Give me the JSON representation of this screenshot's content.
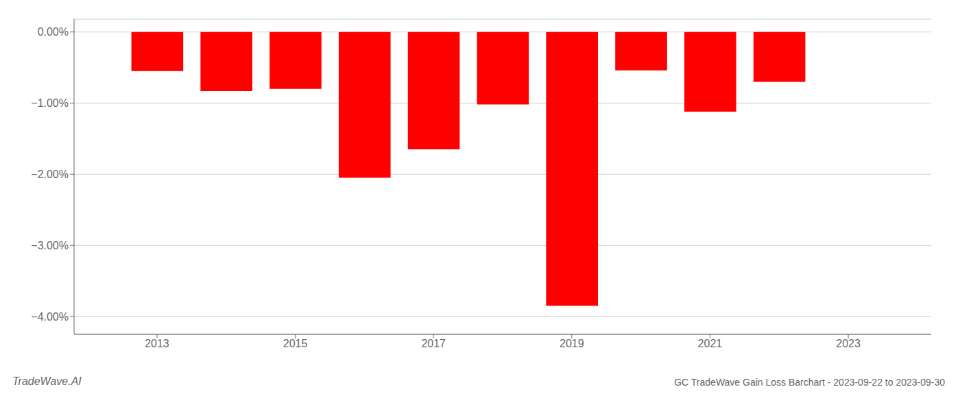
{
  "chart_data": {
    "type": "bar",
    "title": "GC TradeWave Gain Loss Barchart - 2023-09-22 to 2023-09-30",
    "annotations": [
      "TradeWave.AI"
    ],
    "x": [
      2013,
      2014,
      2015,
      2016,
      2017,
      2018,
      2019,
      2020,
      2021,
      2022
    ],
    "values": [
      -0.55,
      -0.83,
      -0.8,
      -2.05,
      -1.65,
      -1.02,
      -3.85,
      -0.54,
      -1.12,
      -0.7
    ],
    "color": "#ff0000",
    "xlim": [
      2011.8,
      2024.2
    ],
    "xticks": [
      2013,
      2015,
      2017,
      2019,
      2021,
      2023
    ],
    "ylim": [
      -4.25,
      0.18
    ],
    "yticks": [
      {
        "value": 0.0,
        "label": "0.00%"
      },
      {
        "value": -1.0,
        "label": "−1.00%"
      },
      {
        "value": -2.0,
        "label": "−2.00%"
      },
      {
        "value": -3.0,
        "label": "−3.00%"
      },
      {
        "value": -4.0,
        "label": "−4.00%"
      }
    ],
    "grid": true
  }
}
